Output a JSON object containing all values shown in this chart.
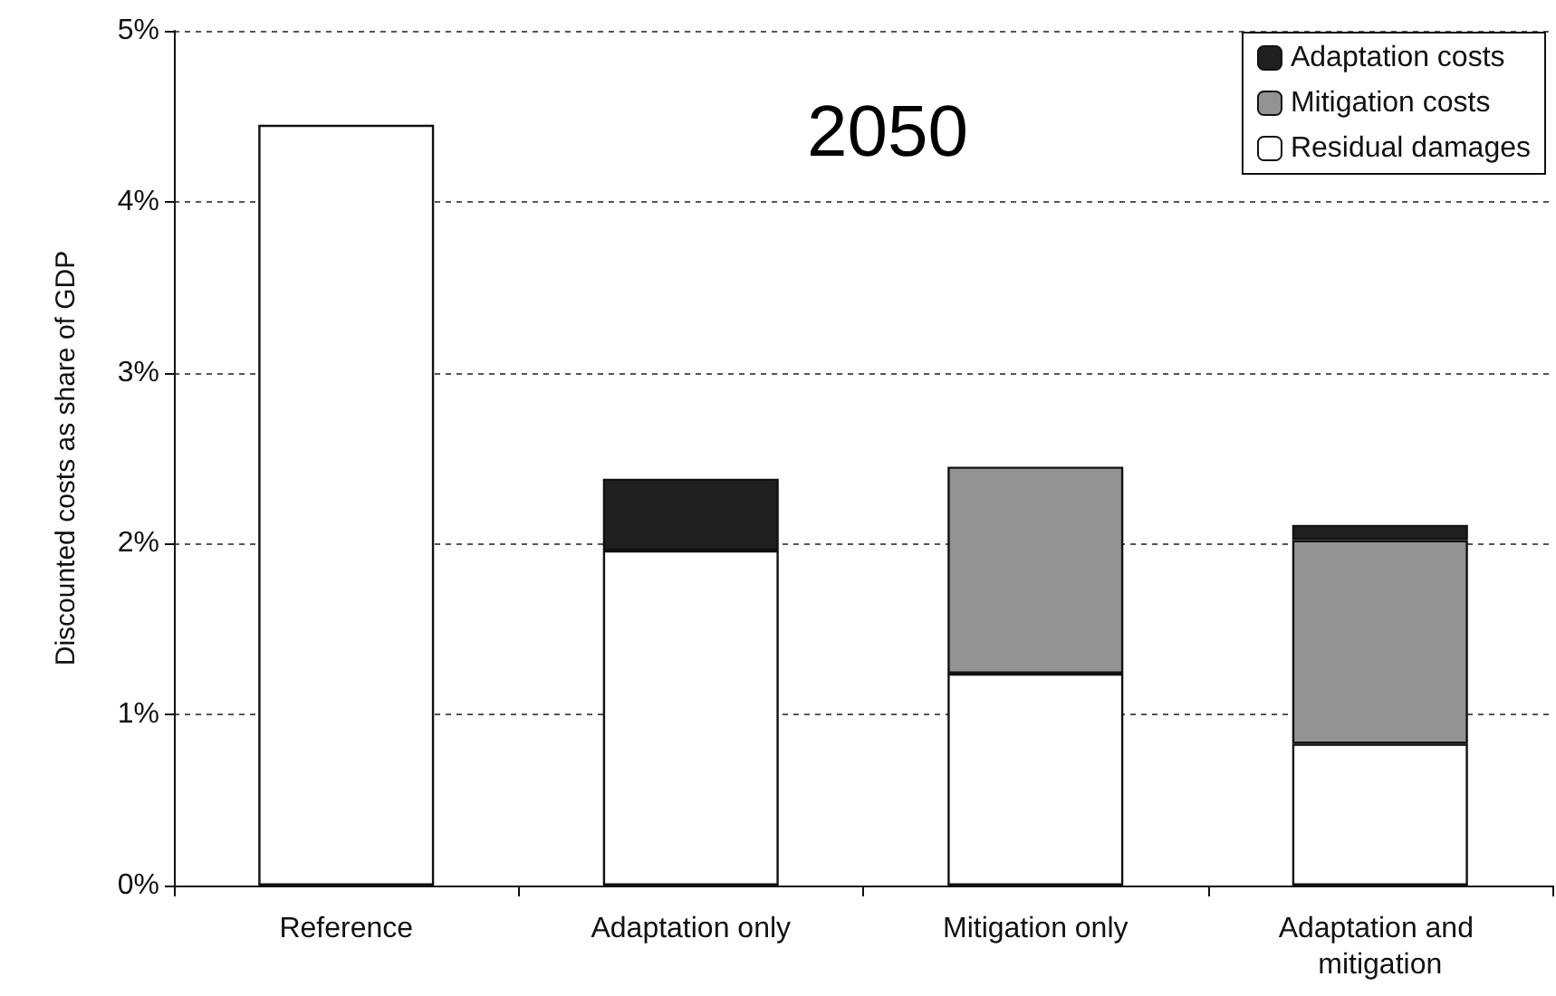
{
  "chart_data": {
    "type": "bar",
    "title": "2050",
    "ylabel": "Discounted costs as share of GDP",
    "categories": [
      "Reference",
      "Adaptation only",
      "Mitigation only",
      "Adaptation and mitigation"
    ],
    "stacked": true,
    "series": [
      {
        "name": "Residual damages",
        "color": "#ffffff",
        "values": [
          4.45,
          1.96,
          1.24,
          0.83
        ]
      },
      {
        "name": "Mitigation costs",
        "color": "#939393",
        "values": [
          null,
          null,
          1.21,
          1.19
        ]
      },
      {
        "name": "Adaptation costs",
        "color": "#202020",
        "values": [
          null,
          0.42,
          null,
          0.09
        ]
      }
    ],
    "ylim": [
      0,
      5
    ],
    "yticks": [
      {
        "value": 0,
        "label": "0%"
      },
      {
        "value": 1,
        "label": "1%"
      },
      {
        "value": 2,
        "label": "2%"
      },
      {
        "value": 3,
        "label": "3%"
      },
      {
        "value": 4,
        "label": "4%"
      },
      {
        "value": 5,
        "label": "5%"
      }
    ],
    "grid": "y",
    "legend": "top right"
  }
}
